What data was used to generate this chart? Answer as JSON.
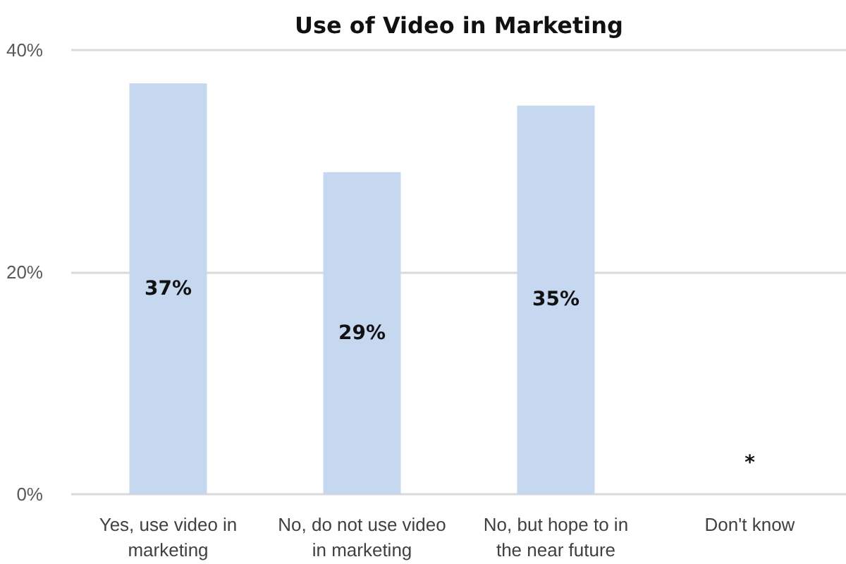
{
  "chart_data": {
    "type": "bar",
    "title": "Use of Video in Marketing",
    "categories": [
      "Yes, use video in marketing",
      "No, do not use video in marketing",
      "No, but hope to in the near future",
      "Don't know"
    ],
    "values": [
      37,
      29,
      35,
      0
    ],
    "color": "#c6d7f0",
    "value_labels": [
      "37%",
      "29%",
      "35%",
      "*"
    ],
    "ylim": [
      0,
      40
    ],
    "yticks": [
      {
        "value": 0,
        "label": "0%"
      },
      {
        "value": 20,
        "label": "20%"
      },
      {
        "value": 40,
        "label": "40%"
      }
    ],
    "grid": "y"
  }
}
